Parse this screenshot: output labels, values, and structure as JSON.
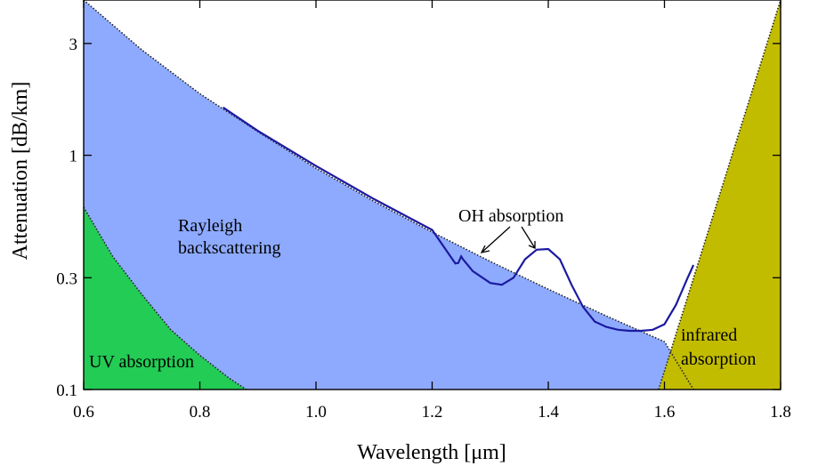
{
  "chart_data": {
    "type": "area",
    "xlabel": "Wavelength [μm]",
    "ylabel": "Attenuation [dB/km]",
    "x_scale": "linear",
    "y_scale": "log",
    "xlim": [
      0.6,
      1.8
    ],
    "ylim": [
      0.1,
      4.6
    ],
    "x_ticks": [
      0.6,
      0.8,
      1.0,
      1.2,
      1.4,
      1.6,
      1.8
    ],
    "x_tick_labels": [
      "0.6",
      "0.8",
      "1.0",
      "1.2",
      "1.4",
      "1.6",
      "1.8"
    ],
    "y_ticks": [
      0.1,
      0.3,
      1,
      3
    ],
    "y_tick_labels": [
      "0.1",
      "0.3",
      "1",
      "3"
    ],
    "grid": false,
    "colors": {
      "uv": "#22cc55",
      "rayleigh": "#8eaaff",
      "infrared": "#c2bc00",
      "curve": "#1c1aa0"
    },
    "regions": [
      {
        "id": "rayleigh",
        "label": "Rayleigh backscattering",
        "points": [
          [
            0.6,
            4.6
          ],
          [
            0.7,
            2.82
          ],
          [
            0.8,
            1.83
          ],
          [
            0.9,
            1.26
          ],
          [
            1.0,
            0.88
          ],
          [
            1.1,
            0.635
          ],
          [
            1.2,
            0.47
          ],
          [
            1.3,
            0.352
          ],
          [
            1.4,
            0.268
          ],
          [
            1.5,
            0.206
          ],
          [
            1.6,
            0.16
          ],
          [
            1.65,
            0.1
          ]
        ]
      },
      {
        "id": "uv",
        "label": "UV absorption",
        "points": [
          [
            0.6,
            0.6
          ],
          [
            0.65,
            0.37
          ],
          [
            0.7,
            0.255
          ],
          [
            0.75,
            0.18
          ],
          [
            0.8,
            0.14
          ],
          [
            0.85,
            0.112
          ],
          [
            0.88,
            0.1
          ]
        ]
      },
      {
        "id": "infrared",
        "label": "infrared absorption",
        "points": [
          [
            1.59,
            0.1
          ],
          [
            1.8,
            4.6
          ]
        ]
      }
    ],
    "series": [
      {
        "points": [
          [
            0.84,
            1.6
          ],
          [
            0.9,
            1.27
          ],
          [
            1.0,
            0.9
          ],
          [
            1.1,
            0.65
          ],
          [
            1.2,
            0.48
          ],
          [
            1.24,
            0.345
          ],
          [
            1.245,
            0.347
          ],
          [
            1.25,
            0.37
          ],
          [
            1.253,
            0.36
          ],
          [
            1.27,
            0.32
          ],
          [
            1.3,
            0.285
          ],
          [
            1.32,
            0.28
          ],
          [
            1.34,
            0.3
          ],
          [
            1.36,
            0.36
          ],
          [
            1.38,
            0.395
          ],
          [
            1.4,
            0.398
          ],
          [
            1.42,
            0.36
          ],
          [
            1.44,
            0.28
          ],
          [
            1.46,
            0.225
          ],
          [
            1.48,
            0.195
          ],
          [
            1.5,
            0.185
          ],
          [
            1.52,
            0.18
          ],
          [
            1.54,
            0.178
          ],
          [
            1.56,
            0.178
          ],
          [
            1.58,
            0.18
          ],
          [
            1.6,
            0.19
          ],
          [
            1.62,
            0.23
          ],
          [
            1.64,
            0.3
          ],
          [
            1.65,
            0.34
          ]
        ]
      }
    ],
    "annotations": [
      {
        "id": "oh",
        "lines": [
          "OH absorption"
        ]
      },
      {
        "id": "rayleigh",
        "lines": [
          "Rayleigh",
          "backscattering"
        ]
      },
      {
        "id": "uv",
        "lines": [
          "UV absorption"
        ]
      },
      {
        "id": "infrared",
        "lines": [
          "infrared",
          "absorption"
        ]
      }
    ]
  }
}
